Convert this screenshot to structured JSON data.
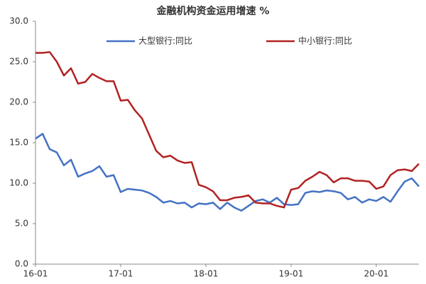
{
  "chart_data": {
    "type": "line",
    "title": "金融机构资金运用增速 %",
    "categories": [
      "16-01",
      null,
      null,
      null,
      null,
      null,
      null,
      null,
      null,
      null,
      null,
      null,
      "17-01",
      null,
      null,
      null,
      null,
      null,
      null,
      null,
      null,
      null,
      null,
      null,
      "18-01",
      null,
      null,
      null,
      null,
      null,
      null,
      null,
      null,
      null,
      null,
      null,
      "19-01",
      null,
      null,
      null,
      null,
      null,
      null,
      null,
      null,
      null,
      null,
      null,
      "20-01",
      null,
      null,
      null,
      null,
      null,
      null
    ],
    "series": [
      {
        "name": "大型银行:同比",
        "color": "#4472c4",
        "values": [
          15.5,
          16.1,
          14.2,
          13.8,
          12.2,
          12.9,
          10.8,
          11.2,
          11.5,
          12.1,
          10.8,
          11.0,
          8.9,
          9.3,
          9.2,
          9.1,
          8.8,
          8.3,
          7.6,
          7.8,
          7.5,
          7.6,
          7.0,
          7.5,
          7.4,
          7.6,
          6.8,
          7.6,
          7.0,
          6.6,
          7.2,
          7.8,
          8.0,
          7.6,
          8.2,
          7.4,
          7.3,
          7.4,
          8.8,
          9.0,
          8.9,
          9.1,
          9.0,
          8.8,
          8.0,
          8.3,
          7.6,
          8.0,
          7.8,
          8.3,
          7.7,
          9.0,
          10.2,
          10.6,
          9.6
        ]
      },
      {
        "name": "中小银行:同比",
        "color": "#b22222",
        "values": [
          26.1,
          26.1,
          26.2,
          25.0,
          23.3,
          24.2,
          22.3,
          22.5,
          23.5,
          23.0,
          22.6,
          22.6,
          20.2,
          20.3,
          19.0,
          18.0,
          16.0,
          14.0,
          13.2,
          13.4,
          12.8,
          12.5,
          12.6,
          9.8,
          9.5,
          9.0,
          7.9,
          7.9,
          8.2,
          8.3,
          8.5,
          7.6,
          7.5,
          7.5,
          7.2,
          7.0,
          9.2,
          9.4,
          10.3,
          10.8,
          11.4,
          11.0,
          10.1,
          10.6,
          10.6,
          10.3,
          10.3,
          10.2,
          9.3,
          9.6,
          11.0,
          11.6,
          11.7,
          11.5,
          12.4
        ]
      }
    ],
    "ylim": [
      0,
      30
    ],
    "yticks": [
      {
        "value": 0,
        "label": "0.0"
      },
      {
        "value": 5,
        "label": "5.0"
      },
      {
        "value": 10,
        "label": "10.0"
      },
      {
        "value": 15,
        "label": "15.0"
      },
      {
        "value": 20,
        "label": "20.0"
      },
      {
        "value": 25,
        "label": "25.0"
      },
      {
        "value": 30,
        "label": "30.0"
      }
    ]
  }
}
